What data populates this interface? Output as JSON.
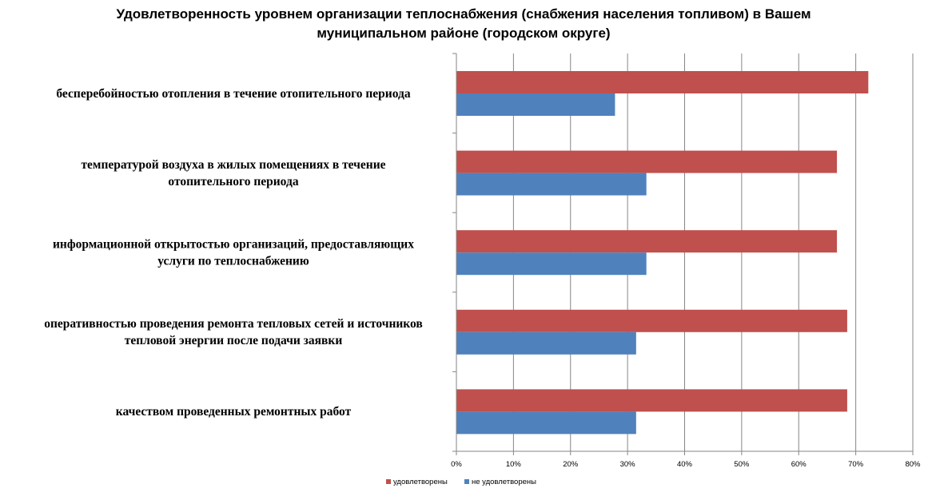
{
  "chart_data": {
    "type": "bar",
    "orientation": "horizontal",
    "title_lines": [
      "Удовлетворенность уровнем организации теплоснабжения (снабжения населения топливом) в Вашем",
      "муниципальном районе (городском округе)"
    ],
    "categories": [
      {
        "lines": [
          "бесперебойностью отопления в течение отопительного периода"
        ]
      },
      {
        "lines": [
          "температурой воздуха в жилых помещениях в течение",
          "отопительного периода"
        ]
      },
      {
        "lines": [
          "информационной открытостью организаций, предоставляющих",
          "услуги по теплоснабжению"
        ]
      },
      {
        "lines": [
          "оперативностью проведения ремонта тепловых сетей и источников",
          "тепловой энергии после подачи заявки"
        ]
      },
      {
        "lines": [
          "качеством проведенных ремонтных работ"
        ]
      }
    ],
    "series": [
      {
        "name": "удовлетворены",
        "color": "#C0504D",
        "values": [
          72.2,
          66.7,
          66.7,
          68.5,
          68.5
        ]
      },
      {
        "name": "не удовлетворены",
        "color": "#4F81BD",
        "values": [
          27.8,
          33.3,
          33.3,
          31.5,
          31.5
        ]
      }
    ],
    "x_ticks": [
      "0%",
      "10%",
      "20%",
      "30%",
      "40%",
      "50%",
      "60%",
      "70%",
      "80%"
    ],
    "xlim": [
      0,
      80
    ],
    "grid": true,
    "legend_position": "bottom"
  }
}
